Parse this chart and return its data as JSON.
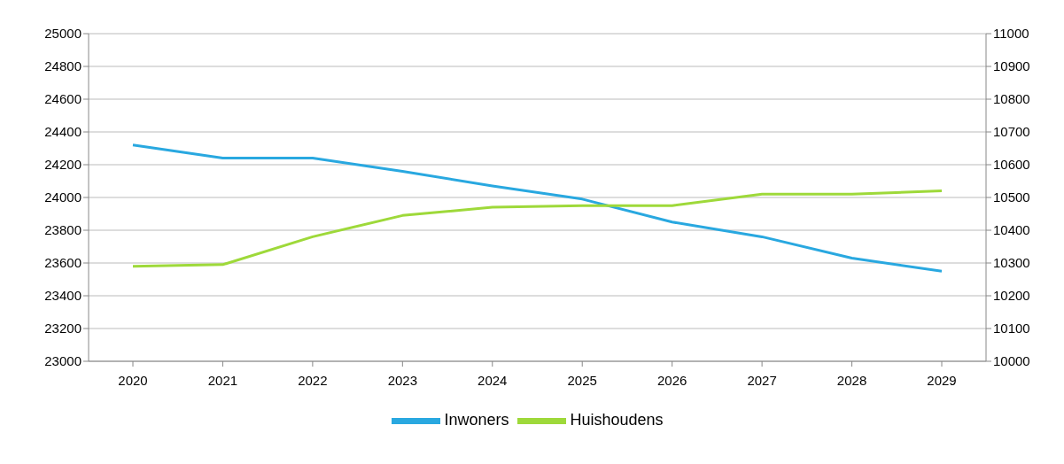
{
  "chart_data": {
    "type": "line",
    "categories": [
      "2020",
      "2021",
      "2022",
      "2023",
      "2024",
      "2025",
      "2026",
      "2027",
      "2028",
      "2029"
    ],
    "series": [
      {
        "name": "Inwoners",
        "color": "#29a8e0",
        "values": [
          24320,
          24240,
          24240,
          24160,
          24070,
          23990,
          23850,
          23760,
          23630,
          23550
        ]
      },
      {
        "name": "Huishoudens",
        "color": "#9ed93a",
        "axis": "y2",
        "values": [
          10290,
          10295,
          10380,
          10445,
          10470,
          10475,
          10475,
          10510,
          10510,
          10520
        ]
      }
    ],
    "ylim": [
      23000,
      25000
    ],
    "yticks": [
      23000,
      23200,
      23400,
      23600,
      23800,
      24000,
      24200,
      24400,
      24600,
      24800,
      25000
    ],
    "y2lim": [
      10000,
      11000
    ],
    "y2ticks": [
      10000,
      10100,
      10200,
      10300,
      10400,
      10500,
      10600,
      10700,
      10800,
      10900,
      11000
    ],
    "grid": "y",
    "legend": "bottom",
    "marker": "none",
    "line_style": "solid"
  }
}
